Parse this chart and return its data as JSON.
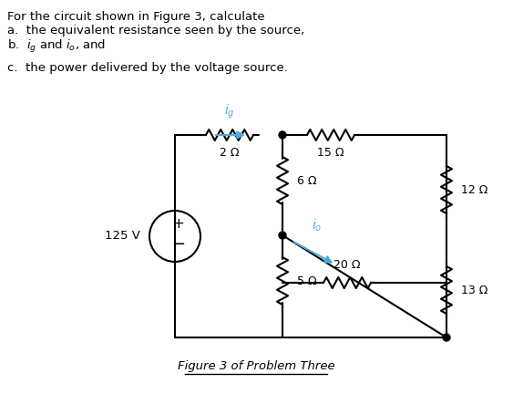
{
  "background_color": "#ffffff",
  "text_color": "#000000",
  "blue_color": "#4DAADC",
  "caption": "Figure 3 of Problem Three",
  "source_voltage": "125 V",
  "resistors": {
    "R1": "2 Ω",
    "R2": "6 Ω",
    "R3": "15 Ω",
    "R4": "12 Ω",
    "R5": "5 Ω",
    "R6": "20 Ω",
    "R7": "13 Ω"
  }
}
